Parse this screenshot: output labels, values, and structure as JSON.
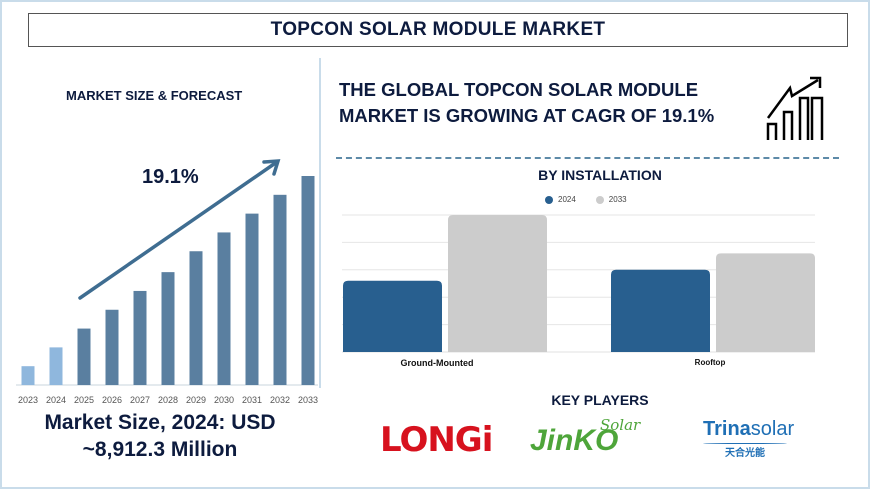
{
  "header": {
    "title": "TOPCON SOLAR MODULE MARKET"
  },
  "left": {
    "section_label": "MARKET SIZE & FORECAST",
    "cagr": "19.1%",
    "market_size_line1": "Market Size, 2024: USD",
    "market_size_line2": "~8,912.3 Million"
  },
  "right": {
    "headline_line1": "THE GLOBAL TOPCON SOLAR MODULE",
    "headline_line2": "MARKET IS GROWING AT CAGR OF 19.1%",
    "growth_icon": "growth-chart-icon",
    "installation_title": "BY INSTALLATION",
    "key_players_title": "KEY PLAYERS"
  },
  "key_players": [
    {
      "name": "LONGi",
      "color": "#d7121e"
    },
    {
      "name": "JinKO",
      "extra": "Solar",
      "color": "#4ea53a"
    },
    {
      "name": "Trina",
      "extra": "solar",
      "sub": "天合光能",
      "color": "#1f6fb5"
    }
  ],
  "colors": {
    "forecast_bar": "#5a7fa0",
    "historic_bar": "#8fb7dd",
    "series_2024": "#285f8f",
    "series_2033": "#cccccc",
    "title": "#0d1b3e"
  },
  "chart_data": [
    {
      "type": "bar",
      "categories": [
        "2023",
        "2024",
        "2025",
        "2026",
        "2027",
        "2028",
        "2029",
        "2030",
        "2031",
        "2032",
        "2033"
      ],
      "values": [
        9,
        18,
        27,
        36,
        45,
        54,
        64,
        73,
        82,
        91,
        100
      ],
      "values_note_unit": "relative",
      "annotation": "19.1%",
      "grid": false
    },
    {
      "type": "bar",
      "title": "BY INSTALLATION",
      "categories": [
        "Ground-Mounted",
        "Rooftop"
      ],
      "series": [
        {
          "name": "2024",
          "values": [
            2.6,
            3.0
          ]
        },
        {
          "name": "2033",
          "values": [
            5.0,
            3.6
          ]
        }
      ],
      "ylim": [
        0,
        5
      ],
      "grid": true,
      "legend": "top-center"
    }
  ]
}
